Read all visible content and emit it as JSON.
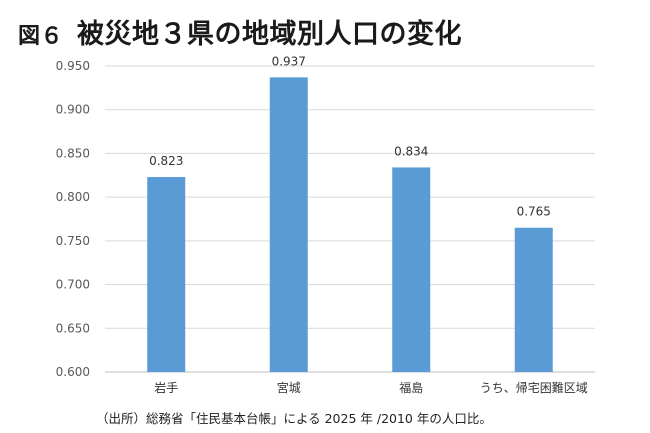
{
  "title": {
    "figure_label": "図６",
    "text": "被災地３県の地域別人口の変化"
  },
  "source": "（出所）総務省「住民基本台帳」による 2025 年 /2010 年の人口比。",
  "chart_data": {
    "type": "bar",
    "categories": [
      "岩手",
      "宮城",
      "福島",
      "うち、帰宅困難区域"
    ],
    "values": [
      0.823,
      0.937,
      0.834,
      0.765
    ],
    "data_labels": [
      "0.823",
      "0.937",
      "0.834",
      "0.765"
    ],
    "ylim": [
      0.6,
      0.95
    ],
    "yticks": [
      "0.600",
      "0.650",
      "0.700",
      "0.750",
      "0.800",
      "0.850",
      "0.900",
      "0.950"
    ],
    "grid": true,
    "legend": "none",
    "bar_color": "#5b9bd5"
  }
}
